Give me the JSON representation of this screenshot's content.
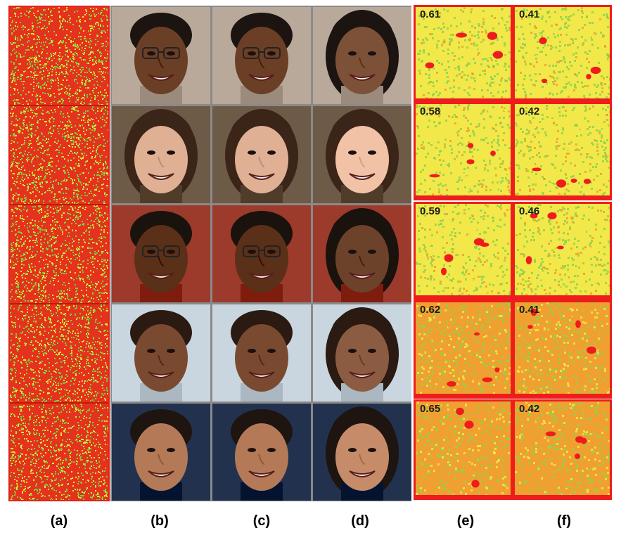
{
  "captions": [
    "(a)",
    "(b)",
    "(c)",
    "(d)",
    "(e)",
    "(f)"
  ],
  "heatmap_scores": {
    "e": [
      "0.61",
      "0.58",
      "0.59",
      "0.62",
      "0.65"
    ],
    "f": [
      "0.41",
      "0.42",
      "0.46",
      "0.41",
      "0.42"
    ]
  },
  "colors": {
    "noise_red": "#e5321f",
    "noise_green": "#7ccf3a",
    "noise_yellow": "#e8e33a",
    "heat_yellow": "#f2e84a",
    "heat_green": "#8fd24a",
    "heat_red": "#ee1c1c",
    "heat_orange": "#f0a030"
  },
  "rows": [
    {
      "face": "woman-with-glasses",
      "skin": "#6b3f26",
      "hair": "#1c1410",
      "bg": "#b9a99a"
    },
    {
      "face": "young-woman-short-hair",
      "skin": "#e0b094",
      "hair": "#3b2418",
      "bg": "#6d5a47"
    },
    {
      "face": "man-with-glasses",
      "skin": "#5a3018",
      "hair": "#1a120c",
      "bg": "#9c3a2c"
    },
    {
      "face": "smiling-man",
      "skin": "#7a4a30",
      "hair": "#2a1a12",
      "bg": "#c9d6e0"
    },
    {
      "face": "man-looking-up",
      "skin": "#b47a58",
      "hair": "#1e1410",
      "bg": "#22324e"
    }
  ]
}
